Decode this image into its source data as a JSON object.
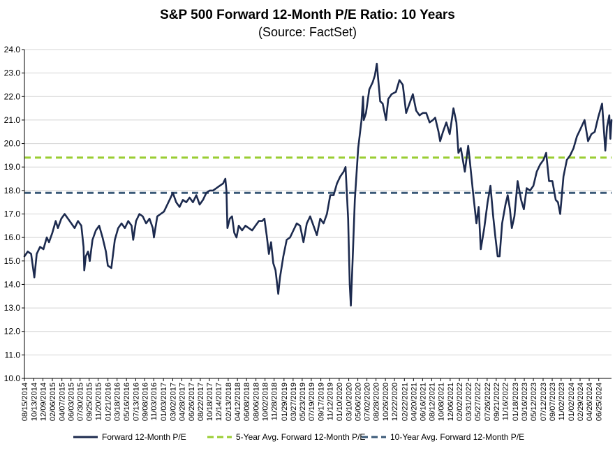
{
  "chart_data": {
    "type": "line",
    "title": "S&P 500 Forward 12-Month P/E Ratio: 10 Years",
    "subtitle": "(Source: FactSet)",
    "ylim": [
      10.0,
      24.0
    ],
    "yticks": [
      "10.0",
      "11.0",
      "12.0",
      "13.0",
      "14.0",
      "15.0",
      "16.0",
      "17.0",
      "18.0",
      "19.0",
      "20.0",
      "21.0",
      "22.0",
      "23.0",
      "24.0"
    ],
    "xlim": [
      "2014-08-15",
      "2024-09-13"
    ],
    "xticks": [
      "08/15/2014",
      "10/13/2014",
      "12/09/2014",
      "02/06/2015",
      "04/07/2015",
      "06/03/2015",
      "07/30/2015",
      "09/25/2015",
      "11/20/2015",
      "01/21/2016",
      "03/18/2016",
      "05/16/2016",
      "07/13/2016",
      "09/08/2016",
      "11/03/2016",
      "01/03/2017",
      "03/02/2017",
      "04/28/2017",
      "06/26/2017",
      "08/22/2017",
      "10/18/2017",
      "12/14/2017",
      "02/13/2018",
      "04/12/2018",
      "06/08/2018",
      "08/06/2018",
      "10/02/2018",
      "11/28/2018",
      "01/29/2019",
      "03/27/2019",
      "05/23/2019",
      "07/19/2019",
      "09/17/2019",
      "11/12/2019",
      "01/10/2020",
      "03/10/2020",
      "05/06/2020",
      "07/02/2020",
      "08/28/2020",
      "10/26/2020",
      "12/22/2020",
      "02/22/2021",
      "04/20/2021",
      "06/16/2021",
      "08/12/2021",
      "10/08/2021",
      "12/06/2021",
      "02/02/2022",
      "03/31/2022",
      "05/27/2022",
      "07/26/2022",
      "09/21/2022",
      "11/16/2022",
      "01/18/2023",
      "03/16/2023",
      "05/12/2023",
      "07/12/2023",
      "09/07/2023",
      "11/02/2023",
      "01/02/2024",
      "02/29/2024",
      "04/26/2024",
      "06/25/2024"
    ],
    "grid": true,
    "legend_position": "bottom",
    "series": [
      {
        "name": "Forward 12-Month P/E",
        "color": "#1c2a4e",
        "style": "solid",
        "points": [
          [
            "2014-08-15",
            15.2
          ],
          [
            "2014-09-05",
            15.4
          ],
          [
            "2014-09-26",
            15.3
          ],
          [
            "2014-10-10",
            14.6
          ],
          [
            "2014-10-16",
            14.3
          ],
          [
            "2014-10-31",
            15.3
          ],
          [
            "2014-11-21",
            15.6
          ],
          [
            "2014-12-12",
            15.5
          ],
          [
            "2015-01-02",
            16.0
          ],
          [
            "2015-01-16",
            15.8
          ],
          [
            "2015-02-06",
            16.2
          ],
          [
            "2015-02-27",
            16.7
          ],
          [
            "2015-03-13",
            16.4
          ],
          [
            "2015-04-03",
            16.8
          ],
          [
            "2015-04-24",
            17.0
          ],
          [
            "2015-05-15",
            16.8
          ],
          [
            "2015-06-05",
            16.6
          ],
          [
            "2015-06-26",
            16.4
          ],
          [
            "2015-07-17",
            16.7
          ],
          [
            "2015-08-07",
            16.5
          ],
          [
            "2015-08-21",
            15.6
          ],
          [
            "2015-08-25",
            14.6
          ],
          [
            "2015-09-04",
            15.2
          ],
          [
            "2015-09-18",
            15.4
          ],
          [
            "2015-09-29",
            15.0
          ],
          [
            "2015-10-16",
            15.9
          ],
          [
            "2015-11-06",
            16.3
          ],
          [
            "2015-11-27",
            16.5
          ],
          [
            "2015-12-18",
            16.0
          ],
          [
            "2016-01-08",
            15.4
          ],
          [
            "2016-01-20",
            14.8
          ],
          [
            "2016-02-11",
            14.7
          ],
          [
            "2016-03-04",
            15.9
          ],
          [
            "2016-03-25",
            16.4
          ],
          [
            "2016-04-15",
            16.6
          ],
          [
            "2016-05-06",
            16.4
          ],
          [
            "2016-05-27",
            16.7
          ],
          [
            "2016-06-17",
            16.5
          ],
          [
            "2016-06-27",
            15.9
          ],
          [
            "2016-07-15",
            16.7
          ],
          [
            "2016-08-05",
            17.0
          ],
          [
            "2016-08-26",
            16.9
          ],
          [
            "2016-09-16",
            16.6
          ],
          [
            "2016-10-07",
            16.8
          ],
          [
            "2016-10-28",
            16.4
          ],
          [
            "2016-11-04",
            16.0
          ],
          [
            "2016-11-25",
            16.9
          ],
          [
            "2016-12-16",
            17.0
          ],
          [
            "2017-01-06",
            17.1
          ],
          [
            "2017-01-27",
            17.4
          ],
          [
            "2017-02-17",
            17.7
          ],
          [
            "2017-03-03",
            17.9
          ],
          [
            "2017-03-24",
            17.5
          ],
          [
            "2017-04-14",
            17.3
          ],
          [
            "2017-05-05",
            17.6
          ],
          [
            "2017-05-26",
            17.5
          ],
          [
            "2017-06-16",
            17.7
          ],
          [
            "2017-07-07",
            17.5
          ],
          [
            "2017-07-28",
            17.8
          ],
          [
            "2017-08-18",
            17.4
          ],
          [
            "2017-09-08",
            17.6
          ],
          [
            "2017-09-29",
            17.9
          ],
          [
            "2017-10-20",
            18.0
          ],
          [
            "2017-11-10",
            18.0
          ],
          [
            "2017-12-01",
            18.1
          ],
          [
            "2017-12-22",
            18.2
          ],
          [
            "2018-01-12",
            18.3
          ],
          [
            "2018-01-26",
            18.5
          ],
          [
            "2018-02-02",
            18.0
          ],
          [
            "2018-02-08",
            16.4
          ],
          [
            "2018-02-23",
            16.8
          ],
          [
            "2018-03-09",
            16.9
          ],
          [
            "2018-03-23",
            16.2
          ],
          [
            "2018-04-06",
            16.0
          ],
          [
            "2018-04-20",
            16.5
          ],
          [
            "2018-05-11",
            16.3
          ],
          [
            "2018-06-01",
            16.5
          ],
          [
            "2018-06-22",
            16.4
          ],
          [
            "2018-07-13",
            16.3
          ],
          [
            "2018-08-03",
            16.5
          ],
          [
            "2018-08-24",
            16.7
          ],
          [
            "2018-09-14",
            16.7
          ],
          [
            "2018-09-28",
            16.8
          ],
          [
            "2018-10-12",
            16.1
          ],
          [
            "2018-10-26",
            15.3
          ],
          [
            "2018-11-09",
            15.8
          ],
          [
            "2018-11-23",
            14.9
          ],
          [
            "2018-12-07",
            14.6
          ],
          [
            "2018-12-24",
            13.6
          ],
          [
            "2019-01-04",
            14.3
          ],
          [
            "2019-01-25",
            15.2
          ],
          [
            "2019-02-15",
            15.9
          ],
          [
            "2019-03-08",
            16.0
          ],
          [
            "2019-03-29",
            16.3
          ],
          [
            "2019-04-19",
            16.6
          ],
          [
            "2019-05-10",
            16.5
          ],
          [
            "2019-05-31",
            15.8
          ],
          [
            "2019-06-21",
            16.6
          ],
          [
            "2019-07-12",
            16.9
          ],
          [
            "2019-08-02",
            16.5
          ],
          [
            "2019-08-23",
            16.1
          ],
          [
            "2019-09-13",
            16.8
          ],
          [
            "2019-10-04",
            16.6
          ],
          [
            "2019-10-25",
            17.0
          ],
          [
            "2019-11-15",
            17.8
          ],
          [
            "2019-12-06",
            17.8
          ],
          [
            "2019-12-27",
            18.3
          ],
          [
            "2020-01-17",
            18.6
          ],
          [
            "2020-02-07",
            18.8
          ],
          [
            "2020-02-19",
            19.0
          ],
          [
            "2020-03-06",
            16.8
          ],
          [
            "2020-03-16",
            14.0
          ],
          [
            "2020-03-23",
            13.1
          ],
          [
            "2020-04-03",
            15.0
          ],
          [
            "2020-04-17",
            17.6
          ],
          [
            "2020-05-08",
            19.8
          ],
          [
            "2020-05-29",
            21.0
          ],
          [
            "2020-06-08",
            22.0
          ],
          [
            "2020-06-12",
            21.0
          ],
          [
            "2020-06-26",
            21.3
          ],
          [
            "2020-07-17",
            22.3
          ],
          [
            "2020-08-07",
            22.6
          ],
          [
            "2020-08-21",
            22.9
          ],
          [
            "2020-09-02",
            23.4
          ],
          [
            "2020-09-23",
            21.8
          ],
          [
            "2020-10-09",
            21.7
          ],
          [
            "2020-10-30",
            21.0
          ],
          [
            "2020-11-13",
            21.9
          ],
          [
            "2020-12-04",
            22.1
          ],
          [
            "2020-12-31",
            22.2
          ],
          [
            "2021-01-22",
            22.7
          ],
          [
            "2021-02-12",
            22.5
          ],
          [
            "2021-03-05",
            21.3
          ],
          [
            "2021-03-26",
            21.7
          ],
          [
            "2021-04-16",
            22.1
          ],
          [
            "2021-05-07",
            21.4
          ],
          [
            "2021-05-28",
            21.2
          ],
          [
            "2021-06-18",
            21.3
          ],
          [
            "2021-07-09",
            21.3
          ],
          [
            "2021-07-30",
            20.9
          ],
          [
            "2021-08-20",
            21.0
          ],
          [
            "2021-09-03",
            21.1
          ],
          [
            "2021-09-24",
            20.5
          ],
          [
            "2021-10-04",
            20.1
          ],
          [
            "2021-10-22",
            20.5
          ],
          [
            "2021-11-12",
            20.9
          ],
          [
            "2021-12-03",
            20.4
          ],
          [
            "2021-12-27",
            21.5
          ],
          [
            "2022-01-14",
            20.9
          ],
          [
            "2022-01-27",
            19.6
          ],
          [
            "2022-02-11",
            19.8
          ],
          [
            "2022-03-08",
            18.8
          ],
          [
            "2022-03-29",
            19.9
          ],
          [
            "2022-04-08",
            19.3
          ],
          [
            "2022-04-29",
            17.9
          ],
          [
            "2022-05-20",
            16.6
          ],
          [
            "2022-06-03",
            17.3
          ],
          [
            "2022-06-16",
            15.5
          ],
          [
            "2022-07-08",
            16.4
          ],
          [
            "2022-07-29",
            17.5
          ],
          [
            "2022-08-16",
            18.2
          ],
          [
            "2022-09-02",
            16.9
          ],
          [
            "2022-09-16",
            16.0
          ],
          [
            "2022-09-30",
            15.2
          ],
          [
            "2022-10-12",
            15.2
          ],
          [
            "2022-10-28",
            16.6
          ],
          [
            "2022-11-18",
            17.4
          ],
          [
            "2022-12-02",
            17.8
          ],
          [
            "2022-12-16",
            17.2
          ],
          [
            "2022-12-28",
            16.4
          ],
          [
            "2023-01-13",
            16.9
          ],
          [
            "2023-02-02",
            18.4
          ],
          [
            "2023-02-24",
            17.6
          ],
          [
            "2023-03-13",
            17.2
          ],
          [
            "2023-03-31",
            18.1
          ],
          [
            "2023-04-21",
            18.0
          ],
          [
            "2023-05-12",
            18.2
          ],
          [
            "2023-06-02",
            18.8
          ],
          [
            "2023-06-23",
            19.1
          ],
          [
            "2023-07-14",
            19.3
          ],
          [
            "2023-07-31",
            19.6
          ],
          [
            "2023-08-18",
            18.4
          ],
          [
            "2023-09-08",
            18.4
          ],
          [
            "2023-09-29",
            17.6
          ],
          [
            "2023-10-13",
            17.5
          ],
          [
            "2023-10-27",
            17.0
          ],
          [
            "2023-11-17",
            18.6
          ],
          [
            "2023-12-08",
            19.3
          ],
          [
            "2023-12-29",
            19.5
          ],
          [
            "2024-01-19",
            19.8
          ],
          [
            "2024-02-09",
            20.3
          ],
          [
            "2024-03-01",
            20.6
          ],
          [
            "2024-03-28",
            21.0
          ],
          [
            "2024-04-19",
            20.1
          ],
          [
            "2024-05-10",
            20.4
          ],
          [
            "2024-05-31",
            20.5
          ],
          [
            "2024-06-21",
            21.1
          ],
          [
            "2024-07-16",
            21.7
          ],
          [
            "2024-07-26",
            20.7
          ],
          [
            "2024-08-05",
            19.7
          ],
          [
            "2024-08-16",
            20.7
          ],
          [
            "2024-08-30",
            21.2
          ],
          [
            "2024-09-06",
            20.2
          ],
          [
            "2024-09-13",
            21.0
          ]
        ]
      },
      {
        "name": "5-Year Avg. Forward 12-Month P/E",
        "color": "#9acd32",
        "style": "dashed",
        "constant": 19.4
      },
      {
        "name": "10-Year Avg. Forward 12-Month P/E",
        "color": "#3b5a78",
        "style": "dashed",
        "constant": 17.9
      }
    ]
  }
}
